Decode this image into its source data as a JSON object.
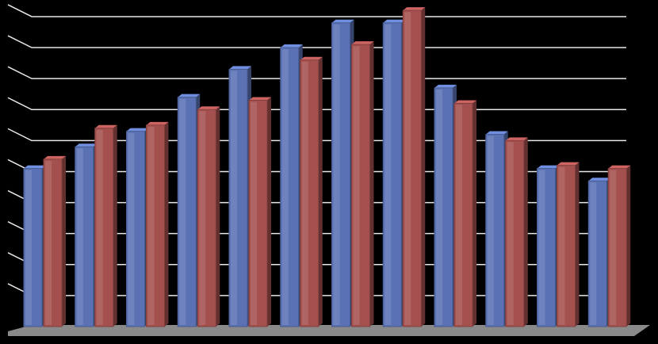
{
  "chart_data": {
    "type": "bar3d",
    "categories": [
      null,
      null,
      null,
      null,
      null,
      null,
      null,
      null,
      null,
      null,
      null,
      null
    ],
    "series": [
      {
        "color": "#5a72b4",
        "values": [
          5.1,
          5.8,
          6.3,
          7.4,
          8.3,
          9.0,
          9.8,
          9.8,
          7.7,
          6.2,
          5.1,
          4.7
        ]
      },
      {
        "color": "#a4504e",
        "values": [
          5.4,
          6.4,
          6.5,
          7.0,
          7.3,
          8.6,
          9.1,
          10.2,
          7.2,
          6.0,
          5.2,
          5.1
        ]
      }
    ],
    "ylim": [
      0,
      10.5
    ],
    "yticks": [
      0,
      1,
      2,
      3,
      4,
      5,
      6,
      7,
      8,
      9,
      10
    ],
    "grid": true
  }
}
